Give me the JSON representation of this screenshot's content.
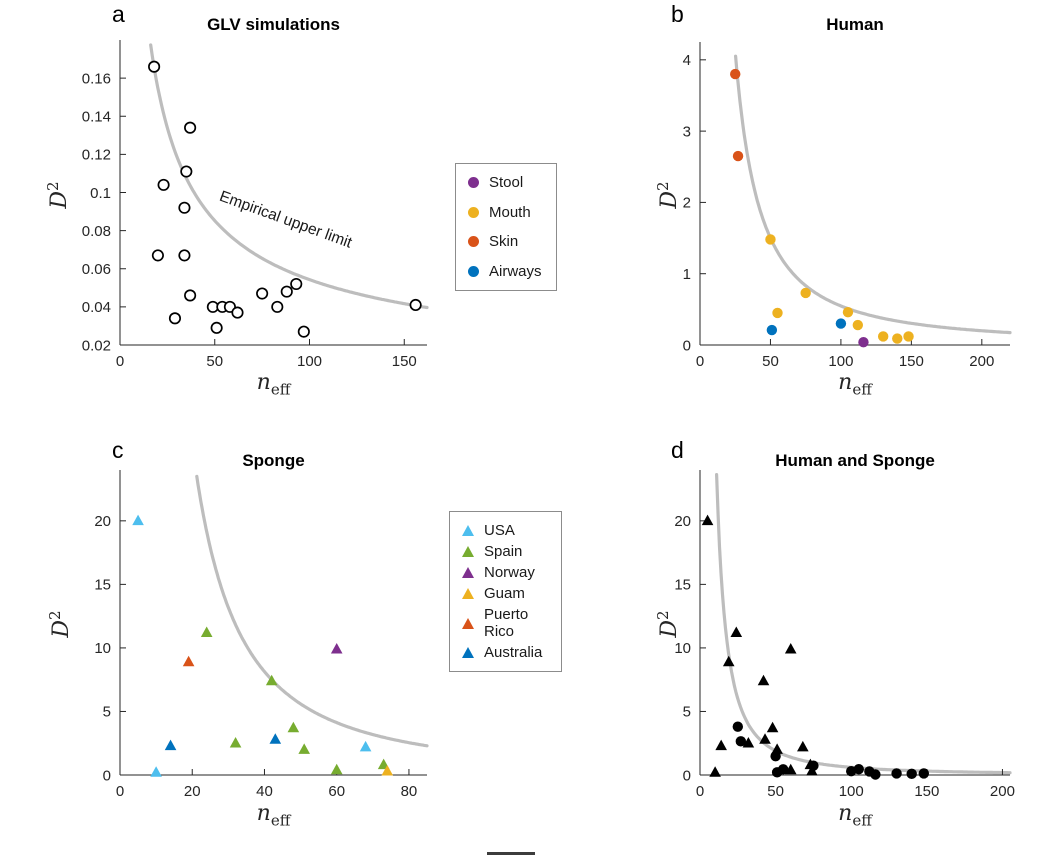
{
  "figure": {
    "background": "#ffffff"
  },
  "colors": {
    "axis": "#262626",
    "curve": "#bdbdbd",
    "text": "#1a1a1a"
  },
  "legends": {
    "human": {
      "items": [
        {
          "label": "Stool",
          "color": "#7E2F8E"
        },
        {
          "label": "Mouth",
          "color": "#EDB120"
        },
        {
          "label": "Skin",
          "color": "#D95319"
        },
        {
          "label": "Airways",
          "color": "#0072BD"
        }
      ]
    },
    "sponge": {
      "items": [
        {
          "label": "USA",
          "color": "#4DBEEE"
        },
        {
          "label": "Spain",
          "color": "#77AC30"
        },
        {
          "label": "Norway",
          "color": "#7E2F8E"
        },
        {
          "label": "Guam",
          "color": "#EDB120"
        },
        {
          "label": "Puerto Rico",
          "color": "#D95319"
        },
        {
          "label": "Australia",
          "color": "#0072BD"
        }
      ]
    }
  },
  "chart_data": [
    {
      "id": "a",
      "letter": "a",
      "type": "scatter",
      "title": "GLV simulations",
      "xlabel": {
        "base": "n",
        "sub": "eff"
      },
      "ylabel": {
        "base": "D",
        "sup": "2"
      },
      "xlim": [
        0,
        162
      ],
      "ylim": [
        0.02,
        0.18
      ],
      "x_ticks": {
        "values": [
          0,
          50,
          100,
          150
        ],
        "labels": [
          "0",
          "50",
          "100",
          "150"
        ]
      },
      "y_ticks": {
        "values": [
          0.02,
          0.04,
          0.06,
          0.08,
          0.1,
          0.12,
          0.14,
          0.16
        ],
        "labels": [
          "0.02",
          "0.04",
          "0.06",
          "0.08",
          "0.1",
          "0.12",
          "0.14",
          "0.16"
        ]
      },
      "curve": {
        "type": "power",
        "a": 1.088,
        "b": -0.651,
        "x_min": 14,
        "x_max": 162
      },
      "annotation": {
        "text": "Empirical upper limit",
        "x": 52,
        "y": 0.096,
        "rotation_deg": 20
      },
      "series": [
        {
          "name": "GLV simulations",
          "marker": "open-circle",
          "color": "#000000",
          "points": [
            [
              18,
              0.166
            ],
            [
              37,
              0.134
            ],
            [
              23,
              0.104
            ],
            [
              35,
              0.111
            ],
            [
              34,
              0.092
            ],
            [
              20,
              0.067
            ],
            [
              34,
              0.067
            ],
            [
              29,
              0.034
            ],
            [
              37,
              0.046
            ],
            [
              49,
              0.04
            ],
            [
              51,
              0.029
            ],
            [
              54,
              0.04
            ],
            [
              58,
              0.04
            ],
            [
              62,
              0.037
            ],
            [
              75,
              0.047
            ],
            [
              83,
              0.04
            ],
            [
              88,
              0.048
            ],
            [
              93,
              0.052
            ],
            [
              97,
              0.027
            ],
            [
              156,
              0.041
            ]
          ]
        }
      ]
    },
    {
      "id": "b",
      "letter": "b",
      "type": "scatter",
      "title": "Human",
      "xlabel": {
        "base": "n",
        "sub": "eff"
      },
      "ylabel": {
        "base": "D",
        "sup": "2"
      },
      "xlim": [
        0,
        220
      ],
      "ylim": [
        0,
        4.25
      ],
      "x_ticks": {
        "values": [
          0,
          50,
          100,
          150,
          200
        ],
        "labels": [
          "0",
          "50",
          "100",
          "150",
          "200"
        ]
      },
      "y_ticks": {
        "values": [
          0,
          1,
          2,
          3,
          4
        ],
        "labels": [
          "0",
          "1",
          "2",
          "3",
          "4"
        ]
      },
      "curve": {
        "type": "power",
        "a": 443,
        "b": -1.454,
        "x_min": 15,
        "x_max": 220
      },
      "series": [
        {
          "name": "Skin",
          "marker": "circle",
          "color": "#D95319",
          "points": [
            [
              25,
              3.8
            ],
            [
              27,
              2.65
            ]
          ]
        },
        {
          "name": "Mouth",
          "marker": "circle",
          "color": "#EDB120",
          "points": [
            [
              50,
              1.48
            ],
            [
              55,
              0.45
            ],
            [
              75,
              0.73
            ],
            [
              105,
              0.46
            ],
            [
              112,
              0.28
            ],
            [
              130,
              0.12
            ],
            [
              140,
              0.09
            ],
            [
              148,
              0.12
            ]
          ]
        },
        {
          "name": "Airways",
          "marker": "circle",
          "color": "#0072BD",
          "points": [
            [
              51,
              0.21
            ],
            [
              100,
              0.3
            ]
          ]
        },
        {
          "name": "Stool",
          "marker": "circle",
          "color": "#7E2F8E",
          "points": [
            [
              116,
              0.04
            ]
          ]
        }
      ]
    },
    {
      "id": "c",
      "letter": "c",
      "type": "scatter",
      "title": "Sponge",
      "xlabel": {
        "base": "n",
        "sub": "eff"
      },
      "ylabel": {
        "base": "D",
        "sup": "2"
      },
      "xlim": [
        0,
        85
      ],
      "ylim": [
        0,
        24
      ],
      "x_ticks": {
        "values": [
          0,
          20,
          40,
          60,
          80
        ],
        "labels": [
          "0",
          "20",
          "40",
          "60",
          "80"
        ]
      },
      "y_ticks": {
        "values": [
          0,
          5,
          10,
          15,
          20
        ],
        "labels": [
          "0",
          "5",
          "10",
          "15",
          "20"
        ]
      },
      "curve": {
        "type": "power",
        "a": 3953,
        "b": -1.677,
        "x_min": 10,
        "x_max": 85
      },
      "series": [
        {
          "name": "USA",
          "marker": "triangle",
          "color": "#4DBEEE",
          "points": [
            [
              5,
              20
            ],
            [
              10,
              0.2
            ],
            [
              68,
              2.2
            ]
          ]
        },
        {
          "name": "Spain",
          "marker": "triangle",
          "color": "#77AC30",
          "points": [
            [
              24,
              11.2
            ],
            [
              32,
              2.5
            ],
            [
              42,
              7.4
            ],
            [
              48,
              3.7
            ],
            [
              51,
              2.0
            ],
            [
              60,
              0.4
            ],
            [
              73,
              0.8
            ]
          ]
        },
        {
          "name": "Norway",
          "marker": "triangle",
          "color": "#7E2F8E",
          "points": [
            [
              60,
              9.9
            ]
          ]
        },
        {
          "name": "Guam",
          "marker": "triangle",
          "color": "#EDB120",
          "points": [
            [
              74,
              0.3
            ]
          ]
        },
        {
          "name": "Puerto Rico",
          "marker": "triangle",
          "color": "#D95319",
          "points": [
            [
              19,
              8.9
            ]
          ]
        },
        {
          "name": "Australia",
          "marker": "triangle",
          "color": "#0072BD",
          "points": [
            [
              14,
              2.3
            ],
            [
              43,
              2.8
            ]
          ]
        }
      ]
    },
    {
      "id": "d",
      "letter": "d",
      "type": "scatter",
      "title": "Human and Sponge",
      "xlabel": {
        "base": "n",
        "sub": "eff"
      },
      "ylabel": {
        "base": "D",
        "sup": "2"
      },
      "xlim": [
        0,
        205
      ],
      "ylim": [
        0,
        24
      ],
      "x_ticks": {
        "values": [
          0,
          50,
          100,
          150,
          200
        ],
        "labels": [
          "0",
          "50",
          "100",
          "150",
          "200"
        ]
      },
      "y_ticks": {
        "values": [
          0,
          5,
          10,
          15,
          20
        ],
        "labels": [
          "0",
          "5",
          "10",
          "15",
          "20"
        ]
      },
      "curve": {
        "type": "power",
        "a": 1260,
        "b": -1.661,
        "x_min": 8,
        "x_max": 205
      },
      "series": [
        {
          "name": "Sponge",
          "marker": "triangle",
          "color": "#000000",
          "points": [
            [
              5,
              20
            ],
            [
              10,
              0.2
            ],
            [
              14,
              2.3
            ],
            [
              19,
              8.9
            ],
            [
              24,
              11.2
            ],
            [
              32,
              2.5
            ],
            [
              42,
              7.4
            ],
            [
              43,
              2.8
            ],
            [
              48,
              3.7
            ],
            [
              51,
              2.0
            ],
            [
              60,
              9.9
            ],
            [
              60,
              0.4
            ],
            [
              68,
              2.2
            ],
            [
              73,
              0.8
            ],
            [
              74,
              0.3
            ]
          ]
        },
        {
          "name": "Human",
          "marker": "circle",
          "color": "#000000",
          "points": [
            [
              25,
              3.8
            ],
            [
              27,
              2.65
            ],
            [
              50,
              1.48
            ],
            [
              51,
              0.21
            ],
            [
              55,
              0.45
            ],
            [
              75,
              0.73
            ],
            [
              100,
              0.3
            ],
            [
              105,
              0.46
            ],
            [
              112,
              0.28
            ],
            [
              116,
              0.04
            ],
            [
              130,
              0.12
            ],
            [
              140,
              0.09
            ],
            [
              148,
              0.12
            ]
          ]
        }
      ]
    }
  ]
}
